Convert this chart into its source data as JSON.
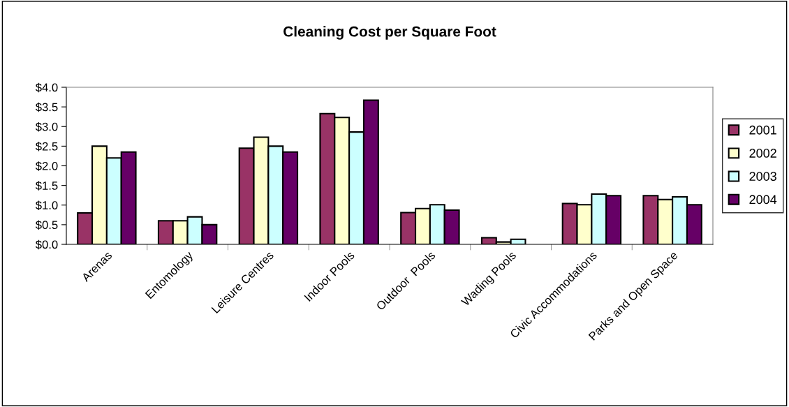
{
  "chart_data": {
    "type": "bar",
    "title": "Cleaning Cost per Square Foot",
    "categories": [
      "Arenas",
      "Entomology",
      "Leisure Centres",
      "Indoor Pools",
      "Outdoor  Pools",
      "Wading Pools",
      "Civic Accommodations",
      "Parks and Open Space"
    ],
    "series": [
      {
        "name": "2001",
        "color": "#993366",
        "values": [
          0.8,
          0.6,
          2.45,
          3.33,
          0.81,
          0.17,
          1.04,
          1.24
        ]
      },
      {
        "name": "2002",
        "color": "#ffffcc",
        "values": [
          2.5,
          0.6,
          2.73,
          3.23,
          0.91,
          0.06,
          1.01,
          1.14
        ]
      },
      {
        "name": "2003",
        "color": "#ccffff",
        "values": [
          2.2,
          0.7,
          2.5,
          2.86,
          1.01,
          0.13,
          1.28,
          1.21
        ]
      },
      {
        "name": "2004",
        "color": "#660066",
        "values": [
          2.35,
          0.5,
          2.35,
          3.67,
          0.87,
          null,
          1.24,
          1.01
        ]
      }
    ],
    "ylim": [
      0,
      4
    ],
    "yticks": [
      {
        "value": 0,
        "label": "$0.0"
      },
      {
        "value": 0.5,
        "label": "$0.5"
      },
      {
        "value": 1,
        "label": "$1.0"
      },
      {
        "value": 1.5,
        "label": "$1.5"
      },
      {
        "value": 2,
        "label": "$2.0"
      },
      {
        "value": 2.5,
        "label": "$2.5"
      },
      {
        "value": 3,
        "label": "$3.0"
      },
      {
        "value": 3.5,
        "label": "$3.5"
      },
      {
        "value": 4,
        "label": "$4.0"
      }
    ],
    "grid": false,
    "legend": "right"
  }
}
